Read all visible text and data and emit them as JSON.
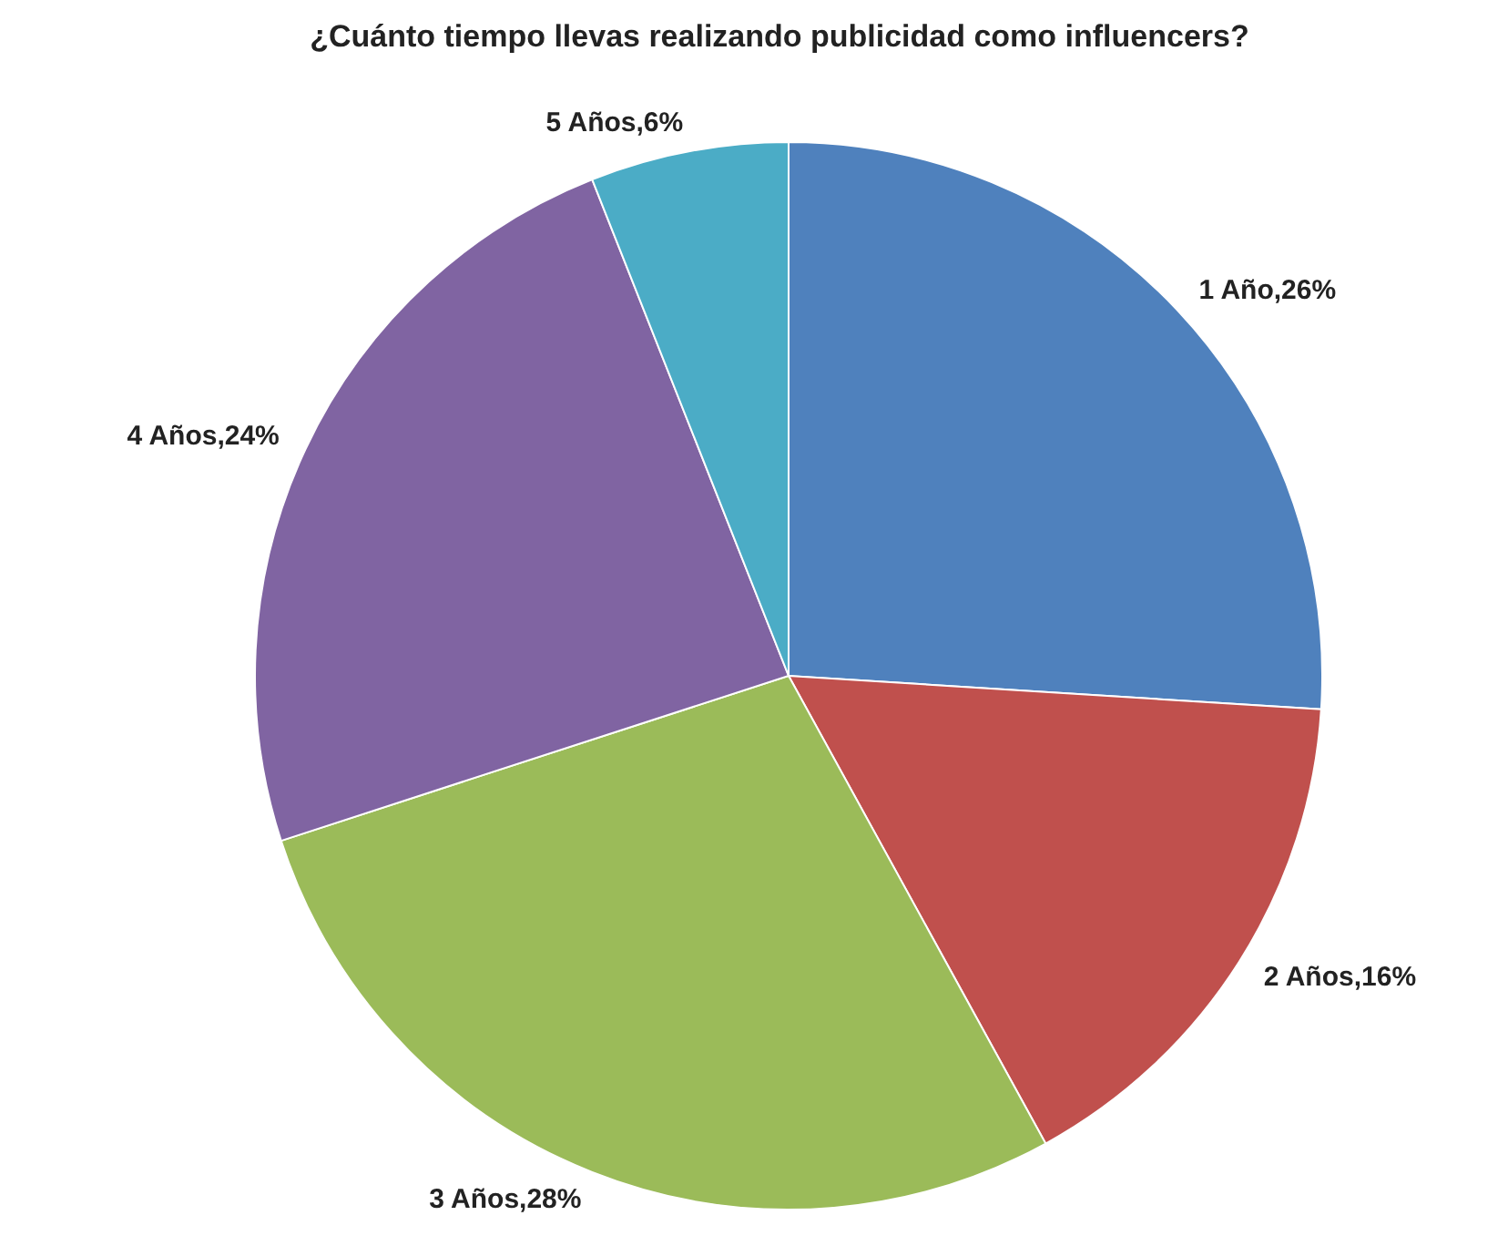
{
  "chart_data": {
    "type": "pie",
    "title": "¿Cuánto tiempo llevas realizando publicidad como influencers?",
    "categories": [
      "1 Año",
      "2 Años",
      "3 Años",
      "4 Años",
      "5 Años"
    ],
    "values": [
      26,
      16,
      28,
      24,
      6
    ],
    "value_labels": [
      "26%",
      "16%",
      "28%",
      "24%",
      "6%"
    ],
    "colors": [
      "#4f81bd",
      "#c0504d",
      "#9bbb59",
      "#8064a2",
      "#4bacc6"
    ]
  }
}
